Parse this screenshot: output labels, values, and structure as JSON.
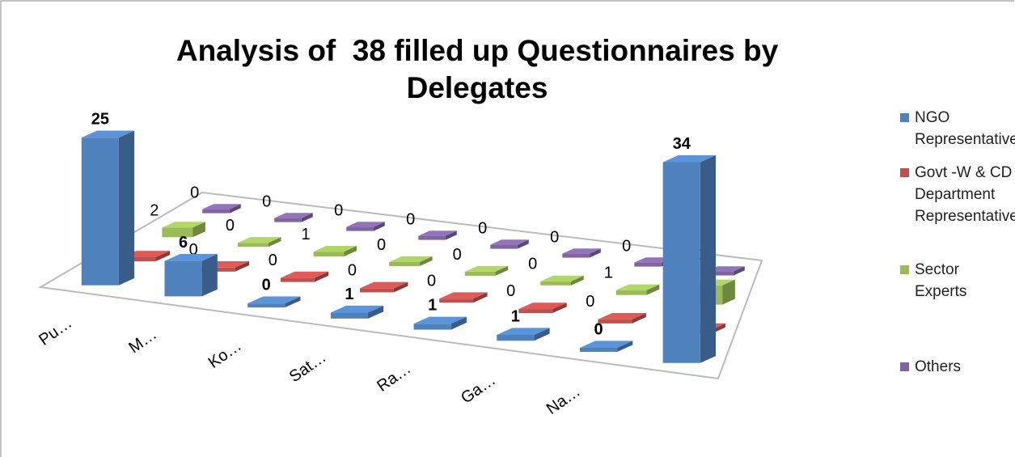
{
  "chart_data": {
    "type": "bar3d",
    "title": "Analysis of  38 filled up Questionnaires by Delegates",
    "categories": [
      "Pu…",
      "M…",
      "Ko…",
      "Sat…",
      "Ra…",
      "Ga…",
      "Na…",
      null
    ],
    "series": [
      {
        "name": "NGO Representatives",
        "color": "#4f81bd",
        "values": [
          25,
          6,
          0,
          1,
          1,
          1,
          0,
          34
        ]
      },
      {
        "name": "Govt -W & CD Department Representatives",
        "color": "#c0504d",
        "values": [
          0,
          0,
          0,
          0,
          0,
          0,
          0,
          0
        ]
      },
      {
        "name": "Sector Experts",
        "color": "#9bbb59",
        "values": [
          2,
          0,
          1,
          0,
          0,
          0,
          1,
          4
        ]
      },
      {
        "name": "Others",
        "color": "#8064a2",
        "values": [
          0,
          0,
          0,
          0,
          0,
          0,
          0,
          0
        ]
      }
    ],
    "legend": "right"
  }
}
